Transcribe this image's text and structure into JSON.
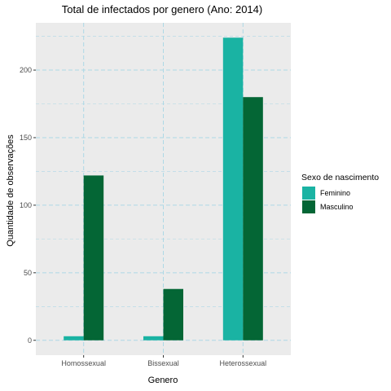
{
  "chart_data": {
    "type": "bar",
    "title": "Total de infectados por genero (Ano: 2014)",
    "xlabel": "Genero",
    "ylabel": "Quantidade de observações",
    "categories": [
      "Homossexual",
      "Bissexual",
      "Heterossexual"
    ],
    "series": [
      {
        "name": "Feminino",
        "color": "#1ab3a3",
        "values": [
          3,
          3,
          224
        ]
      },
      {
        "name": "Masculino",
        "color": "#046635",
        "values": [
          122,
          38,
          180
        ]
      }
    ],
    "ylim": [
      -11,
      235
    ],
    "yticks": [
      0,
      50,
      100,
      150,
      200
    ],
    "legend": {
      "title": "Sexo de nascimento",
      "placement": "right"
    },
    "grid": true,
    "grid_color": "#add8e6",
    "panel_color": "#ebebeb"
  }
}
